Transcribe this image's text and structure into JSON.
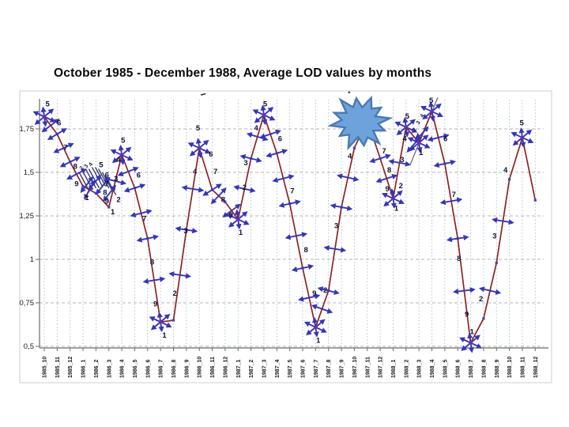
{
  "title": "October 1985 - December 1988, Average LOD values by months",
  "chart_data": {
    "type": "line",
    "title": "October 1985 - December 1988, Average LOD values by months",
    "xlabel": "",
    "ylabel": "",
    "ylim": [
      0.5,
      1.9
    ],
    "grid": true,
    "legend": "none",
    "line_color": "#8e2323",
    "marker_color": "#3636b4",
    "marker_center_color": "#6a2fa8",
    "yticks": [
      {
        "v": 1.75,
        "label": "1,75"
      },
      {
        "v": 1.5,
        "label": "1,5"
      },
      {
        "v": 1.25,
        "label": "1,25"
      },
      {
        "v": 1.0,
        "label": "1"
      },
      {
        "v": 0.75,
        "label": "0,75"
      },
      {
        "v": 0.5,
        "label": "0,5"
      }
    ],
    "categories": [
      "1985_10",
      "1985_11",
      "1985_12",
      "1986_1",
      "1986_2",
      "1986_3",
      "1986_4",
      "1986_5",
      "1986_6",
      "1986_7",
      "1986_8",
      "1986_9",
      "1986_10",
      "1986_11",
      "1986_12",
      "1987_1",
      "1987_2",
      "1987_3",
      "1987_4",
      "1987_5",
      "1987_6",
      "1987_7",
      "1987_8",
      "1987_9",
      "1987_10",
      "1987_11",
      "1987_12",
      "1988_1",
      "1988_2",
      "1988_3",
      "1988_4",
      "1988_5",
      "1988_6",
      "1988_7",
      "1988_8",
      "1988_9",
      "1988_10",
      "1988_11",
      "1988_12"
    ],
    "values": [
      1.82,
      1.72,
      1.56,
      1.42,
      1.38,
      1.3,
      1.6,
      1.41,
      1.12,
      0.64,
      0.65,
      1.17,
      1.64,
      1.4,
      1.33,
      1.23,
      1.58,
      1.83,
      1.61,
      1.32,
      0.95,
      0.61,
      0.82,
      1.3,
      1.64,
      1.8,
      1.58,
      1.35,
      1.76,
      1.67,
      1.85,
      1.55,
      1.12,
      0.52,
      0.66,
      0.98,
      1.46,
      1.7,
      1.34
    ],
    "annotations": {
      "digit_labels": [
        [
          0.25,
          1.88,
          "5"
        ],
        [
          1.15,
          1.77,
          "6"
        ],
        [
          1.65,
          1.63,
          "7"
        ],
        [
          2.4,
          1.52,
          "8"
        ],
        [
          2.5,
          1.42,
          "9"
        ],
        [
          3.3,
          1.34,
          "1"
        ],
        [
          4.4,
          1.53,
          "5"
        ],
        [
          4.85,
          1.47,
          "6"
        ],
        [
          4.85,
          1.42,
          "7"
        ],
        [
          4.7,
          1.37,
          "8"
        ],
        [
          4.85,
          1.32,
          "9"
        ],
        [
          5.3,
          1.26,
          "1"
        ],
        [
          5.75,
          1.33,
          "2"
        ],
        [
          5.55,
          1.45,
          "3"
        ],
        [
          5.75,
          1.56,
          "4"
        ],
        [
          6.1,
          1.67,
          "5"
        ],
        [
          7.3,
          1.47,
          "6"
        ],
        [
          7.75,
          1.22,
          "7"
        ],
        [
          8.35,
          0.97,
          "8"
        ],
        [
          8.6,
          0.73,
          "9"
        ],
        [
          9.3,
          0.55,
          "1"
        ],
        [
          10.1,
          0.79,
          "2"
        ],
        [
          10.95,
          1.15,
          "3"
        ],
        [
          11.65,
          1.49,
          "4"
        ],
        [
          11.9,
          1.74,
          "5"
        ],
        [
          12.9,
          1.59,
          "6"
        ],
        [
          13.25,
          1.49,
          "7"
        ],
        [
          13.85,
          1.33,
          "8"
        ],
        [
          14.45,
          1.24,
          "9"
        ],
        [
          15.2,
          1.14,
          "1"
        ],
        [
          15.5,
          1.4,
          "2"
        ],
        [
          15.6,
          1.54,
          "3"
        ],
        [
          16.4,
          1.74,
          "4"
        ],
        [
          17.1,
          1.88,
          "5"
        ],
        [
          18.25,
          1.68,
          "6"
        ],
        [
          19.2,
          1.38,
          "7"
        ],
        [
          20.25,
          1.04,
          "8"
        ],
        [
          20.9,
          0.79,
          "9"
        ],
        [
          21.2,
          0.52,
          "1"
        ],
        [
          21.75,
          0.81,
          "2"
        ],
        [
          22.6,
          1.18,
          "3"
        ],
        [
          23.65,
          1.58,
          "4"
        ],
        [
          26.3,
          1.61,
          "7"
        ],
        [
          26.7,
          1.5,
          "8"
        ],
        [
          26.55,
          1.39,
          "9"
        ],
        [
          27.25,
          1.28,
          "1"
        ],
        [
          27.6,
          1.41,
          "2"
        ],
        [
          27.7,
          1.56,
          "3"
        ],
        [
          27.9,
          1.68,
          "4"
        ],
        [
          28.1,
          1.81,
          "5"
        ],
        [
          29.15,
          1.6,
          "1"
        ],
        [
          29.95,
          1.9,
          "5"
        ],
        [
          31.05,
          1.68,
          "6"
        ],
        [
          31.7,
          1.36,
          "7"
        ],
        [
          32.1,
          0.99,
          "8"
        ],
        [
          32.7,
          0.67,
          "9"
        ],
        [
          33.1,
          0.57,
          "1"
        ],
        [
          33.8,
          0.76,
          "2"
        ],
        [
          34.85,
          1.12,
          "3"
        ],
        [
          35.7,
          1.5,
          "4"
        ],
        [
          36.95,
          1.77,
          "5"
        ]
      ],
      "tiny_rotated_labels": [
        [
          3.0,
          1.52,
          "2"
        ],
        [
          3.35,
          1.53,
          "3"
        ],
        [
          3.7,
          1.54,
          "4"
        ],
        [
          28.75,
          1.74,
          "2"
        ],
        [
          29.05,
          1.78,
          "3"
        ],
        [
          29.35,
          1.82,
          "4"
        ]
      ],
      "star_points": [
        0,
        6,
        9,
        12,
        15,
        17,
        21,
        27,
        28,
        29,
        30,
        33,
        37
      ],
      "arrow_midpoints": [
        0,
        1,
        2,
        3,
        5,
        6,
        7,
        8,
        10,
        11,
        13,
        14,
        15,
        16,
        17,
        18,
        19,
        20,
        21,
        22,
        23,
        26,
        27,
        30,
        31,
        32,
        34,
        35
      ],
      "arrow_points": [
        1,
        2,
        7,
        8,
        11,
        13,
        16,
        18,
        19,
        20,
        22,
        23,
        26,
        31,
        32
      ],
      "extra_arrows": [
        [
          3.3,
          1.43,
          -52
        ],
        [
          3.9,
          1.44,
          -52
        ],
        [
          4.5,
          1.42,
          -52
        ],
        [
          5.05,
          1.38,
          -52
        ],
        [
          28.6,
          1.66,
          -48
        ],
        [
          29.2,
          1.72,
          -48
        ]
      ],
      "hatch_cluster": [
        [
          2.7,
          1.5
        ],
        [
          2.95,
          1.51
        ],
        [
          3.2,
          1.52
        ],
        [
          3.45,
          1.52
        ],
        [
          3.7,
          1.53
        ],
        [
          3.95,
          1.53
        ],
        [
          4.2,
          1.52
        ],
        [
          4.5,
          1.5
        ],
        [
          4.75,
          1.48
        ]
      ],
      "hatch_dx": 0.8,
      "hatch_dv": 0.11,
      "pencil_line": [
        28.3,
        1.54,
        30.45,
        1.93
      ],
      "starburst": {
        "x_month": 24.45,
        "v": 1.79,
        "outer_r": 38,
        "inner_r": 23,
        "spikes": 12,
        "fill": "#6ea2dc",
        "stroke": "#4a79b0"
      },
      "stray_marks": [
        {
          "x": 12.3,
          "v": 1.945,
          "type": "dash"
        },
        {
          "x": 23.6,
          "v": 1.96,
          "type": "dot"
        }
      ]
    }
  }
}
